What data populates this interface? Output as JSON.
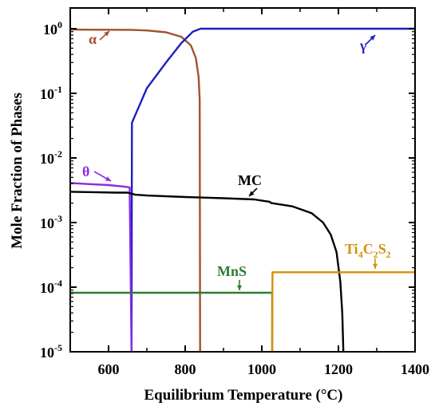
{
  "chart_data": {
    "type": "line",
    "xlabel": "Equilibrium Temperature (°C)",
    "ylabel": "Mole Fraction of Phases",
    "xlim": [
      500,
      1400
    ],
    "ylim": [
      1e-05,
      1.2
    ],
    "yscale": "log",
    "x_ticks": [
      {
        "value": 600,
        "label": "600"
      },
      {
        "value": 800,
        "label": "800"
      },
      {
        "value": 1000,
        "label": "1000"
      },
      {
        "value": 1200,
        "label": "1200"
      },
      {
        "value": 1400,
        "label": "1400"
      }
    ],
    "y_ticks": [
      {
        "value": 1,
        "base": "10",
        "exp": "0"
      },
      {
        "value": 0.1,
        "base": "10",
        "exp": "-1"
      },
      {
        "value": 0.01,
        "base": "10",
        "exp": "-2"
      },
      {
        "value": 0.001,
        "base": "10",
        "exp": "-3"
      },
      {
        "value": 0.0001,
        "base": "10",
        "exp": "-4"
      },
      {
        "value": 1e-05,
        "base": "10",
        "exp": "-5"
      }
    ],
    "series": [
      {
        "name": "α",
        "color": "#a0522d",
        "points": [
          [
            500,
            0.97
          ],
          [
            600,
            0.965
          ],
          [
            660,
            0.96
          ],
          [
            700,
            0.94
          ],
          [
            750,
            0.88
          ],
          [
            790,
            0.75
          ],
          [
            815,
            0.55
          ],
          [
            828,
            0.35
          ],
          [
            835,
            0.18
          ],
          [
            838,
            0.08
          ],
          [
            839,
            1e-05
          ]
        ]
      },
      {
        "name": "γ",
        "color": "#1f1fc0",
        "points": [
          [
            660,
            1e-05
          ],
          [
            661,
            0.035
          ],
          [
            700,
            0.12
          ],
          [
            750,
            0.3
          ],
          [
            790,
            0.6
          ],
          [
            820,
            0.9
          ],
          [
            840,
            1.0
          ],
          [
            1400,
            1.0
          ]
        ]
      },
      {
        "name": "θ",
        "color": "#8a2be2",
        "points": [
          [
            500,
            0.0041
          ],
          [
            560,
            0.0039
          ],
          [
            600,
            0.0038
          ],
          [
            640,
            0.0036
          ],
          [
            655,
            0.0035
          ],
          [
            660,
            1e-05
          ]
        ]
      },
      {
        "name": "MC",
        "color": "#000000",
        "points": [
          [
            500,
            0.003
          ],
          [
            560,
            0.00295
          ],
          [
            620,
            0.0029
          ],
          [
            650,
            0.0029
          ],
          [
            670,
            0.0027
          ],
          [
            700,
            0.00262
          ],
          [
            800,
            0.00248
          ],
          [
            900,
            0.00238
          ],
          [
            980,
            0.00228
          ],
          [
            1020,
            0.0021
          ],
          [
            1025,
            0.002
          ],
          [
            1080,
            0.00178
          ],
          [
            1130,
            0.0014
          ],
          [
            1160,
            0.001
          ],
          [
            1180,
            0.00065
          ],
          [
            1195,
            0.00035
          ],
          [
            1205,
            0.00012
          ],
          [
            1210,
            4e-05
          ],
          [
            1213,
            1e-05
          ]
        ]
      },
      {
        "name": "MnS",
        "color": "#2e7d32",
        "points": [
          [
            500,
            8.2e-05
          ],
          [
            1027,
            8.2e-05
          ],
          [
            1027,
            1e-05
          ]
        ]
      },
      {
        "name": "Ti4C2S2",
        "color": "#d4900a",
        "points": [
          [
            1027,
            1e-05
          ],
          [
            1028,
            0.00017
          ],
          [
            1400,
            0.00017
          ]
        ]
      }
    ],
    "annotations": [
      {
        "text": "α",
        "color": "#a0522d"
      },
      {
        "text": "γ",
        "color": "#1f1fc0"
      },
      {
        "text": "θ",
        "color": "#8a2be2"
      },
      {
        "text": "MC",
        "color": "#000000"
      },
      {
        "text": "MnS",
        "color": "#2e7d32"
      },
      {
        "text": "Ti",
        "sub1": "4",
        "mid": "C",
        "sub2": "2",
        "mid2": "S",
        "sub3": "2",
        "color": "#d4900a"
      }
    ],
    "grid": false,
    "legend": "none"
  }
}
